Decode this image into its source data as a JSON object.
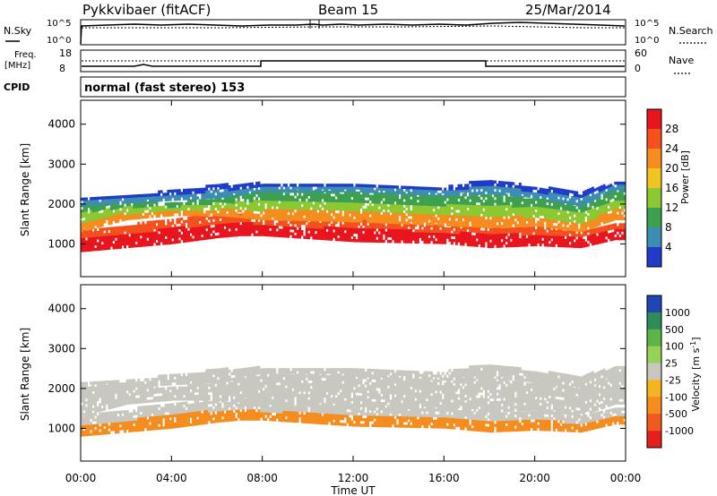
{
  "header": {
    "station": "Pykkvibaer (fitACF)",
    "beam": "Beam 15",
    "date": "25/Mar/2014"
  },
  "top_panels": {
    "nsky_label": "N.Sky",
    "nsky_ticks": [
      "10^5",
      "10^0"
    ],
    "nsearch_label": "N.Search",
    "nsearch_ticks": [
      "10^5",
      "10^0"
    ],
    "freq_label": "Freq.",
    "freq_unit": "[MHz]",
    "freq_ticks": [
      "18",
      "8"
    ],
    "nave_label": "Nave",
    "nave_ticks": [
      "60",
      "0"
    ],
    "cpid_label": "CPID",
    "cpid_text": "normal (fast stereo) 153"
  },
  "colorbars": {
    "power": {
      "label": "Power [dB]",
      "ticks": [
        "28",
        "24",
        "20",
        "16",
        "12",
        "8",
        "4"
      ],
      "colors": [
        "#e8141e",
        "#f4501e",
        "#f58c1e",
        "#f2c41e",
        "#8cc832",
        "#3ca050",
        "#3c8cb4",
        "#1e3cc8"
      ]
    },
    "velocity": {
      "label": "Velocity [m s",
      "label_exp": "-1",
      "label_end": "]",
      "ticks": [
        "1000",
        "500",
        "100",
        "25",
        "-25",
        "-100",
        "-500",
        "-1000"
      ],
      "colors": [
        "#1e46b4",
        "#2e8c5a",
        "#5ab446",
        "#96d25a",
        "#c8c8c0",
        "#f5b41e",
        "#f58c1e",
        "#f05a1e",
        "#e61e1e"
      ]
    }
  },
  "chart_data": [
    {
      "type": "heatmap",
      "title": "",
      "xlabel": "Time UT",
      "ylabel": "Slant Range [km]",
      "x_ticks": [
        "00:00",
        "04:00",
        "08:00",
        "12:00",
        "16:00",
        "20:00",
        "00:00"
      ],
      "xlim_hours": [
        0,
        24
      ],
      "y_ticks": [
        1000,
        2000,
        3000,
        4000
      ],
      "ylim": [
        180,
        4600
      ],
      "quantity": "Power [dB]",
      "bands": [
        {
          "name": "lower",
          "value_dB": 26,
          "points": [
            [
              0,
              800,
              1300
            ],
            [
              2,
              900,
              1450
            ],
            [
              4,
              1000,
              1600
            ],
            [
              6,
              1150,
              1700
            ],
            [
              7,
              1200,
              1750
            ],
            [
              8,
              1200,
              1600
            ],
            [
              12,
              1050,
              1550
            ],
            [
              16,
              1000,
              1450
            ],
            [
              18,
              900,
              1400
            ],
            [
              20,
              950,
              1400
            ],
            [
              22,
              900,
              1300
            ],
            [
              23.5,
              1100,
              1500
            ]
          ]
        },
        {
          "name": "middle",
          "value_dB": 16,
          "points": [
            [
              0,
              1300,
              2000
            ],
            [
              2,
              1600,
              2050
            ],
            [
              4,
              1700,
              2000
            ],
            [
              6,
              1700,
              2150
            ],
            [
              8,
              1600,
              2300
            ],
            [
              12,
              1550,
              2300
            ],
            [
              16,
              1450,
              2200
            ],
            [
              18,
              1400,
              2250
            ],
            [
              20,
              1450,
              2100
            ],
            [
              22,
              1300,
              1950
            ],
            [
              23.5,
              1600,
              2350
            ]
          ]
        },
        {
          "name": "upper",
          "value_dB": 6,
          "points": [
            [
              0,
              1950,
              2100
            ],
            [
              3,
              2050,
              2250
            ],
            [
              6,
              2150,
              2450
            ],
            [
              8,
              2300,
              2500
            ],
            [
              12,
              2300,
              2450
            ],
            [
              16,
              2200,
              2400
            ],
            [
              18,
              2250,
              2600
            ],
            [
              20,
              2150,
              2400
            ],
            [
              22,
              1950,
              2300
            ],
            [
              23.5,
              2350,
              2500
            ]
          ]
        }
      ]
    },
    {
      "type": "heatmap",
      "title": "",
      "xlabel": "Time UT",
      "ylabel": "Slant Range [km]",
      "x_ticks": [
        "00:00",
        "04:00",
        "08:00",
        "12:00",
        "16:00",
        "20:00",
        "00:00"
      ],
      "xlim_hours": [
        0,
        24
      ],
      "y_ticks": [
        1000,
        2000,
        3000,
        4000
      ],
      "ylim": [
        180,
        4600
      ],
      "quantity": "Velocity [m s-1]",
      "bands": [
        {
          "name": "lower",
          "value_ms": -150,
          "points": [
            [
              0,
              800,
              1300
            ],
            [
              2,
              900,
              1450
            ],
            [
              4,
              1000,
              1600
            ],
            [
              6,
              1150,
              1700
            ],
            [
              7,
              1200,
              1750
            ],
            [
              8,
              1200,
              1600
            ],
            [
              12,
              1050,
              1550
            ],
            [
              16,
              1000,
              1450
            ],
            [
              18,
              900,
              1400
            ],
            [
              20,
              950,
              1400
            ],
            [
              22,
              900,
              1300
            ],
            [
              23.5,
              1100,
              1500
            ]
          ]
        },
        {
          "name": "middle",
          "value_ms": 0,
          "points": [
            [
              0,
              1300,
              2000
            ],
            [
              2,
              1600,
              2050
            ],
            [
              4,
              1700,
              2000
            ],
            [
              6,
              1700,
              2150
            ],
            [
              8,
              1600,
              2300
            ],
            [
              12,
              1550,
              2300
            ],
            [
              16,
              1450,
              2200
            ],
            [
              18,
              1400,
              2250
            ],
            [
              20,
              1450,
              2100
            ],
            [
              22,
              1300,
              1950
            ],
            [
              23.5,
              1600,
              2350
            ]
          ]
        },
        {
          "name": "upper",
          "value_ms": 0,
          "points": [
            [
              0,
              1950,
              2100
            ],
            [
              3,
              2050,
              2250
            ],
            [
              6,
              2150,
              2450
            ],
            [
              8,
              2300,
              2500
            ],
            [
              12,
              2300,
              2450
            ],
            [
              16,
              2200,
              2400
            ],
            [
              18,
              2250,
              2600
            ],
            [
              20,
              2150,
              2400
            ],
            [
              22,
              1950,
              2300
            ],
            [
              23.5,
              2350,
              2500
            ]
          ]
        }
      ]
    }
  ]
}
